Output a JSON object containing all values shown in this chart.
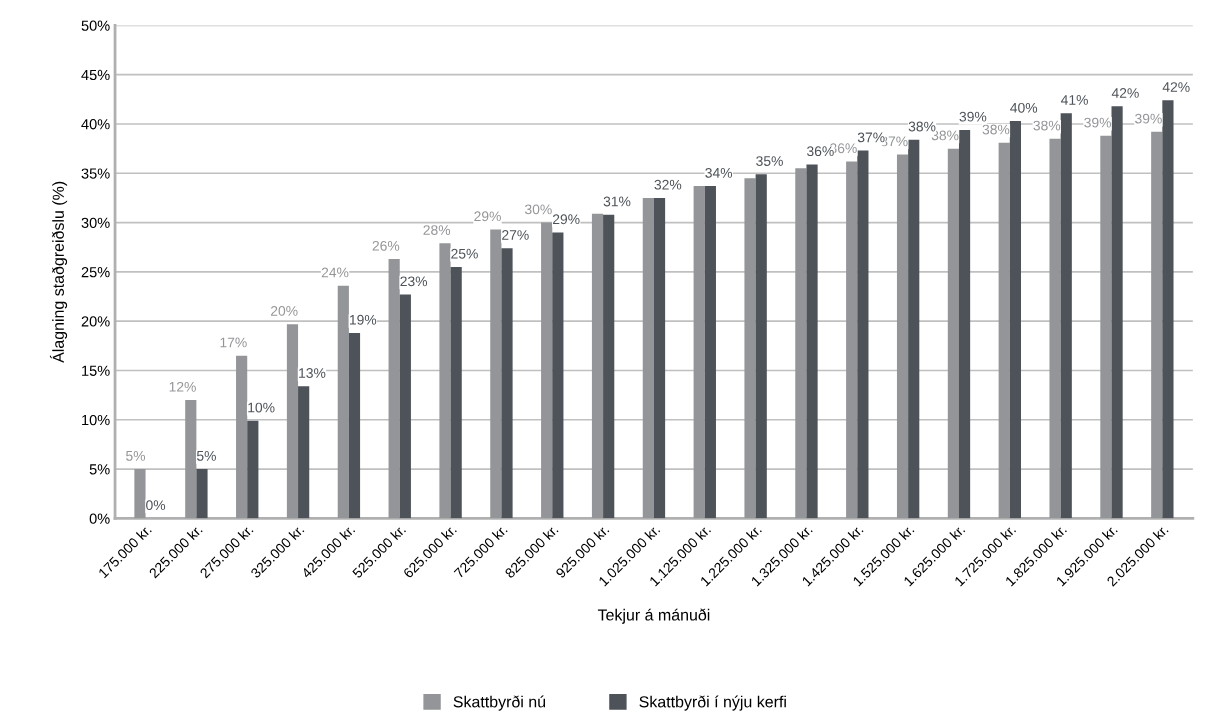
{
  "chart_data": {
    "type": "bar",
    "xlabel": "Tekjur á mánuði",
    "ylabel": "Álagning staðgreiðslu (%)",
    "categories": [
      "175.000 kr.",
      "225.000 kr.",
      "275.000 kr.",
      "325.000 kr.",
      "425.000 kr.",
      "525.000 kr.",
      "625.000 kr.",
      "725.000 kr.",
      "825.000 kr.",
      "925.000 kr.",
      "1.025.000 kr.",
      "1.125.000 kr.",
      "1.225.000 kr.",
      "1.325.000 kr.",
      "1.425.000 kr.",
      "1.525.000 kr.",
      "1.625.000 kr.",
      "1.725.000 kr.",
      "1.825.000 kr.",
      "1.925.000 kr.",
      "2.025.000 kr."
    ],
    "series": [
      {
        "name": "Skattbyrði nú",
        "color": "#939598",
        "values": [
          5.0,
          12.0,
          16.5,
          19.7,
          23.6,
          26.3,
          27.9,
          29.3,
          30.0,
          30.9,
          32.5,
          33.7,
          34.5,
          35.5,
          36.2,
          36.9,
          37.5,
          38.1,
          38.5,
          38.8,
          39.2
        ],
        "value_labels": [
          "5%",
          "12%",
          "17%",
          "20%",
          "24%",
          "26%",
          "28%",
          "29%",
          "30%",
          null,
          null,
          null,
          null,
          null,
          "36%",
          "37%",
          "38%",
          "38%",
          "38%",
          "39%",
          "39%"
        ]
      },
      {
        "name": "Skattbyrði í nýju kerfi",
        "color": "#4d5359",
        "values": [
          0.0,
          5.0,
          9.9,
          13.4,
          18.8,
          22.7,
          25.5,
          27.4,
          29.0,
          30.8,
          32.5,
          33.7,
          34.9,
          35.9,
          37.3,
          38.4,
          39.4,
          40.3,
          41.1,
          41.8,
          42.4
        ],
        "value_labels": [
          "0%",
          "5%",
          "10%",
          "13%",
          "19%",
          "23%",
          "25%",
          "27%",
          "29%",
          "31%",
          "32%",
          "34%",
          "35%",
          "36%",
          "37%",
          "38%",
          "39%",
          "40%",
          "41%",
          "42%",
          "42%"
        ]
      }
    ],
    "ylim": [
      0,
      50
    ],
    "yticks": [
      {
        "value": 0,
        "label": "0%"
      },
      {
        "value": 5,
        "label": "5%"
      },
      {
        "value": 10,
        "label": "10%"
      },
      {
        "value": 15,
        "label": "15%"
      },
      {
        "value": 20,
        "label": "20%"
      },
      {
        "value": 25,
        "label": "25%"
      },
      {
        "value": 30,
        "label": "30%"
      },
      {
        "value": 35,
        "label": "35%"
      },
      {
        "value": 40,
        "label": "40%"
      },
      {
        "value": 45,
        "label": "45%"
      },
      {
        "value": 50,
        "label": "50%"
      }
    ],
    "grid": "y",
    "legend": "bottom"
  }
}
